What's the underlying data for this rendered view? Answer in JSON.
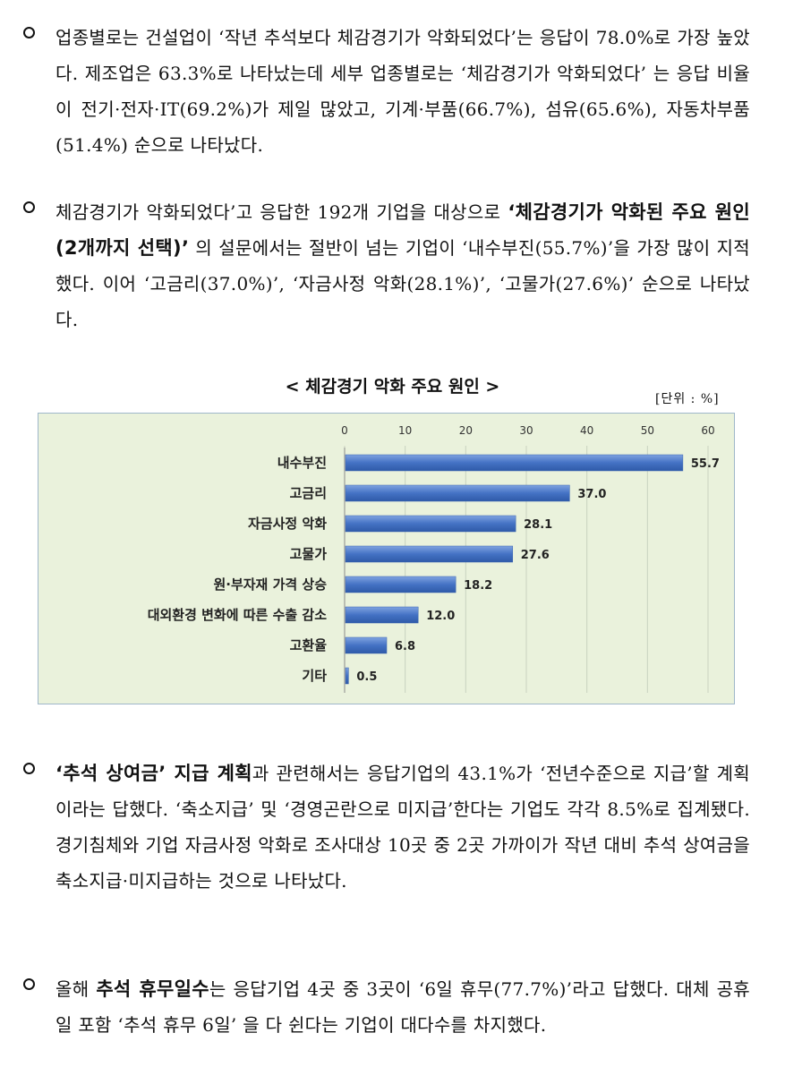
{
  "paragraphs": [
    {
      "id": "p1",
      "parts": [
        {
          "t": "업종별로는 건설업이 ‘작년 추석보다 체감경기가 악화되었다’는 응답이 78.0%로 가장 높았다. 제조업은 63.3%로 나타났는데 세부 업종별로는 ‘체감경기가 악화되었다’ 는 응답 비율이 전기·전자·IT(69.2%)가 제일 많았고, 기계·부품(66.7%), 섬유(65.6%), 자동차부품(51.4%) 순으로 나타났다."
        }
      ]
    },
    {
      "id": "p2",
      "parts": [
        {
          "t": "체감경기가 악화되었다’고 응답한 192개 기업을 대상으로 "
        },
        {
          "t": "‘체감경기가 악화된 주요 원인",
          "bold": true
        },
        {
          "t": "(2개까지 선택)",
          "bold": true,
          "small": true
        },
        {
          "t": "’",
          "bold": true
        },
        {
          "t": " 의 설문에서는 절반이 넘는 기업이 ‘내수부진(55.7%)’을 가장 많이 지적했다. 이어 ‘고금리(37.0%)’, ‘자금사정 악화(28.1%)’, ‘고물가(27.6%)’ 순으로 나타났다."
        }
      ]
    },
    {
      "id": "p3",
      "parts": [
        {
          "t": "‘추석 상여금’ 지급 계획",
          "bold": true
        },
        {
          "t": "과 관련해서는 응답기업의 43.1%가 ‘전년수준으로 지급’할 계획이라는 답했다. ‘축소지급’ 및 ‘경영곤란으로 미지급’한다는 기업도 각각 8.5%로 집계됐다. 경기침체와 기업 자금사정 악화로 조사대상 10곳 중 2곳 가까이가 작년 대비 추석 상여금을 축소지급·미지급하는 것으로 나타났다."
        }
      ]
    },
    {
      "id": "p4",
      "parts": [
        {
          "t": "올해 "
        },
        {
          "t": "추석 휴무일수",
          "bold": true
        },
        {
          "t": "는 응답기업 4곳 중 3곳이 ‘6일 휴무(77.7%)’라고 답했다. 대체 공휴일 포함 ‘추석 휴무 6일’ 을 다 쉰다는 기업이 대다수를 차지했다."
        }
      ]
    }
  ],
  "chart": {
    "title": "< 체감경기 악화 주요 원인 >",
    "unit": "[단위 : %]"
  },
  "chart_data": {
    "type": "bar",
    "orientation": "horizontal",
    "title": "< 체감경기 악화 주요 원인 >",
    "unit": "%",
    "categories": [
      "내수부진",
      "고금리",
      "자금사정 악화",
      "고물가",
      "원·부자재 가격 상승",
      "대외환경 변화에 따른 수출 감소",
      "고환율",
      "기타"
    ],
    "values": [
      55.7,
      37.0,
      28.1,
      27.6,
      18.2,
      12.0,
      6.8,
      0.5
    ],
    "value_labels": [
      "55.7",
      "37.0",
      "28.1",
      "27.6",
      "18.2",
      "12.0",
      "6.8",
      "0.5"
    ],
    "xticks": [
      "0",
      "10",
      "20",
      "30",
      "40",
      "50",
      "60"
    ],
    "xlim": [
      0,
      60
    ],
    "axis_position": "top",
    "grid": true,
    "bar_color": "#4472c4",
    "background_color": "#eaf2dc"
  }
}
